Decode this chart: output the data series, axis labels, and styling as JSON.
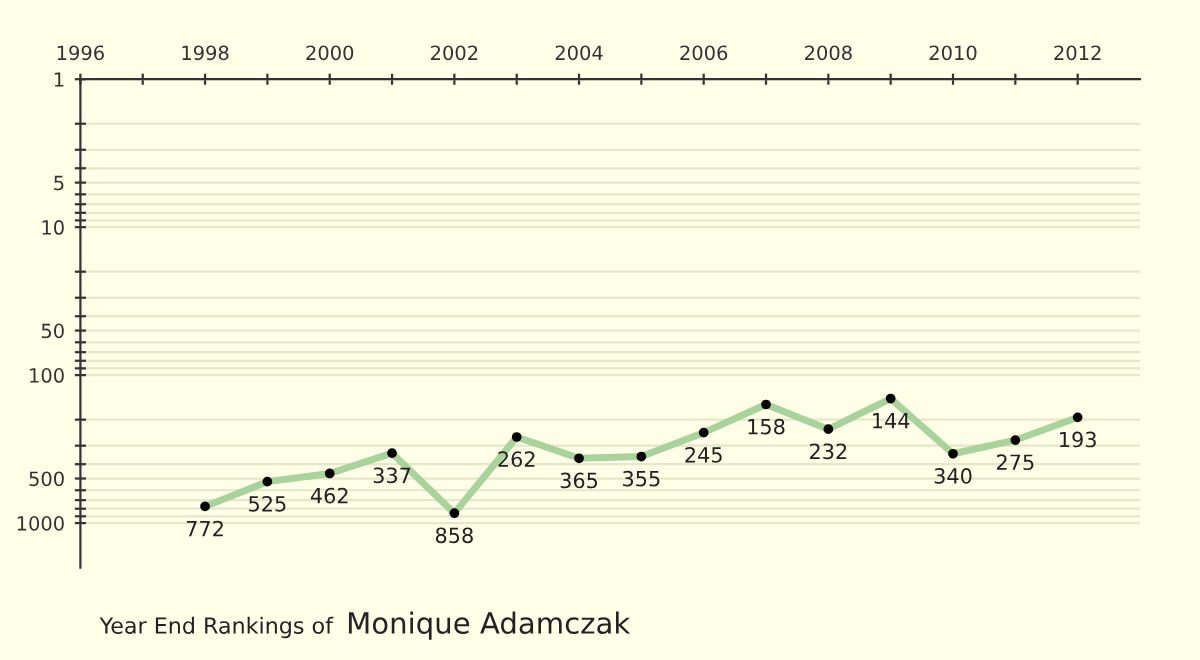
{
  "chart_data": {
    "type": "line",
    "title": "Year End Rankings of",
    "subtitle": "Monique Adamczak",
    "x": [
      1998,
      1999,
      2000,
      2001,
      2002,
      2003,
      2004,
      2005,
      2006,
      2007,
      2008,
      2009,
      2010,
      2011,
      2012
    ],
    "series": [
      {
        "color": "#a8d49c",
        "values": [
          772,
          525,
          462,
          337,
          858,
          262,
          365,
          355,
          245,
          158,
          232,
          144,
          340,
          275,
          193
        ]
      }
    ],
    "data_labels": true,
    "marker": "circle",
    "log": "y",
    "grid": "y",
    "xlim": [
      1996,
      2013
    ],
    "ylim": [
      2000,
      1
    ],
    "xticks": [
      1996,
      {
        "value": 1997,
        "label": null
      },
      1998,
      {
        "value": 1999,
        "label": null
      },
      2000,
      {
        "value": 2001,
        "label": null
      },
      2002,
      {
        "value": 2003,
        "label": null
      },
      2004,
      {
        "value": 2005,
        "label": null
      },
      2006,
      {
        "value": 2007,
        "label": null
      },
      2008,
      {
        "value": 2009,
        "label": null
      },
      2010,
      {
        "value": 2011,
        "label": null
      },
      2012
    ],
    "yticks": [
      1,
      {
        "value": 2,
        "label": null
      },
      {
        "value": 3,
        "label": null
      },
      {
        "value": 4,
        "label": null
      },
      5,
      {
        "value": 6,
        "label": null
      },
      {
        "value": 7,
        "label": null
      },
      {
        "value": 8,
        "label": null
      },
      {
        "value": 9,
        "label": null
      },
      10,
      {
        "value": 20,
        "label": null
      },
      {
        "value": 30,
        "label": null
      },
      {
        "value": 40,
        "label": null
      },
      50,
      {
        "value": 60,
        "label": null
      },
      {
        "value": 70,
        "label": null
      },
      {
        "value": 80,
        "label": null
      },
      {
        "value": 90,
        "label": null
      },
      100,
      {
        "value": 200,
        "label": null
      },
      {
        "value": 300,
        "label": null
      },
      {
        "value": 400,
        "label": null
      },
      500,
      {
        "value": 600,
        "label": null
      },
      {
        "value": 700,
        "label": null
      },
      {
        "value": 800,
        "label": null
      },
      {
        "value": 900,
        "label": null
      },
      1000
    ]
  }
}
